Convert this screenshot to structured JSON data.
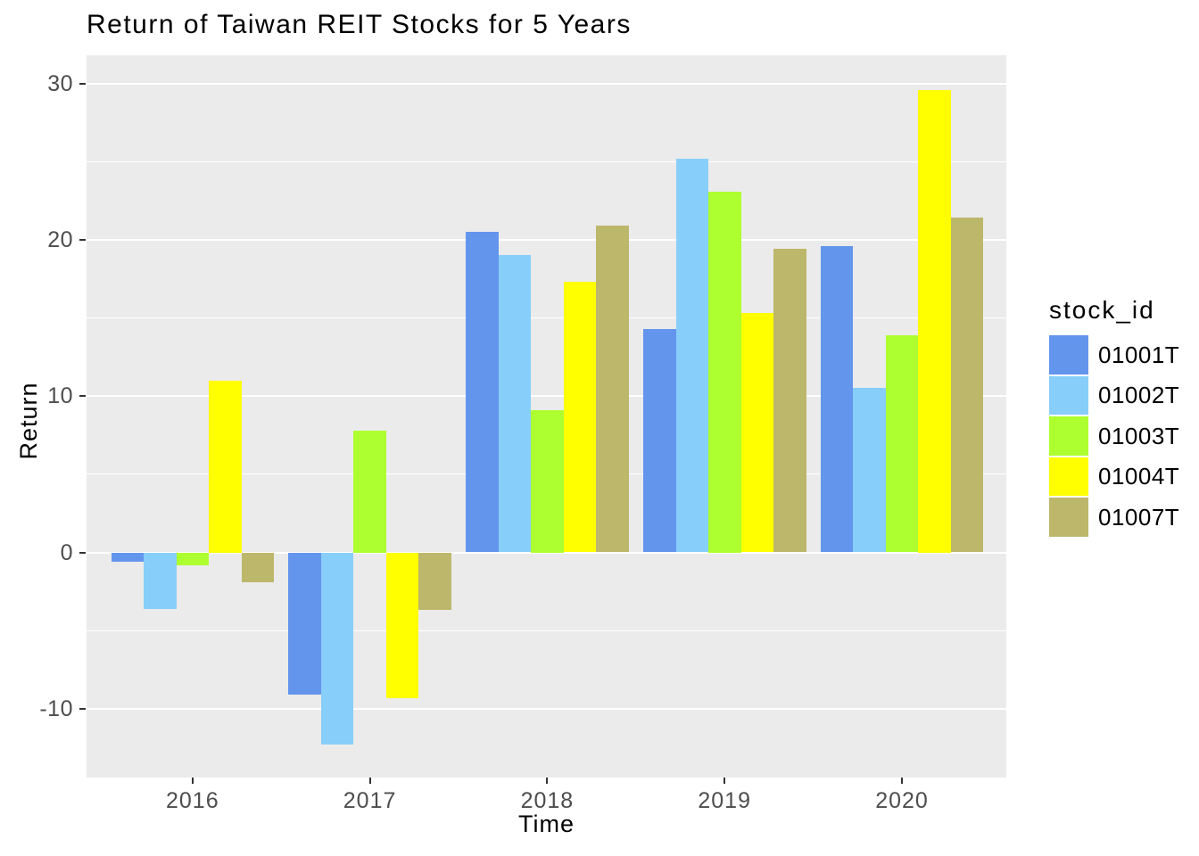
{
  "title": "Return of Taiwan REIT Stocks for 5 Years",
  "x_axis": {
    "title": "Time",
    "tick_labels": [
      "2016",
      "2017",
      "2018",
      "2019",
      "2020"
    ]
  },
  "y_axis": {
    "title": "Return",
    "tick_labels": [
      "30",
      "20",
      "10",
      "0",
      "-10"
    ],
    "tick_values": [
      30,
      20,
      10,
      0,
      -10
    ]
  },
  "legend": {
    "title": "stock_id",
    "entries": [
      "01001T",
      "01002T",
      "01003T",
      "01004T",
      "01007T"
    ]
  },
  "chart_data": {
    "type": "bar",
    "title": "Return of Taiwan REIT Stocks for 5 Years",
    "xlabel": "Time",
    "ylabel": "Return",
    "categories": [
      "2016",
      "2017",
      "2018",
      "2019",
      "2020"
    ],
    "series": [
      {
        "name": "01001T",
        "color": "#6495ED",
        "values": [
          -0.6,
          -9.1,
          20.5,
          14.3,
          19.6
        ]
      },
      {
        "name": "01002T",
        "color": "#87CEFA",
        "values": [
          -3.6,
          -12.3,
          19.0,
          25.2,
          10.5
        ]
      },
      {
        "name": "01003T",
        "color": "#ADFF2F",
        "values": [
          -0.8,
          7.8,
          9.1,
          23.1,
          13.9
        ]
      },
      {
        "name": "01004T",
        "color": "#FFFF00",
        "values": [
          11.0,
          -9.3,
          17.3,
          15.3,
          29.6
        ]
      },
      {
        "name": "01007T",
        "color": "#BDB76B",
        "values": [
          -1.9,
          -3.7,
          20.9,
          19.4,
          21.4
        ]
      }
    ],
    "ylim": [
      -14.4,
      31.8
    ],
    "y_major_gridlines": [
      -10,
      0,
      10,
      20,
      30
    ],
    "y_minor_gridlines": [
      -5,
      5,
      15,
      25
    ],
    "grid": true,
    "legend_position": "right",
    "panel_background": "#EBEBEB",
    "gridline_color": "#FFFFFF",
    "axis_text_color": "#4D4D4D",
    "tick_mark_color": "#333333",
    "title_color": "#000000"
  }
}
